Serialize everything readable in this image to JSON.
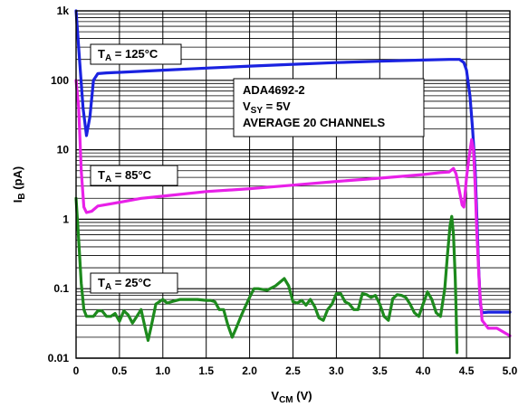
{
  "chart_data": {
    "type": "line",
    "title": "",
    "xlabel": {
      "main": "V",
      "sub": "CM",
      "unit": " (V)"
    },
    "ylabel": {
      "main": "I",
      "sub": "B",
      "unit": " (pA)"
    },
    "xlim": [
      0,
      5
    ],
    "ylim": [
      0.01,
      1000
    ],
    "yscale": "log",
    "grid": true,
    "legend": "none",
    "x_ticks": [
      "0",
      "0.5",
      "1.0",
      "1.5",
      "2.0",
      "2.5",
      "3.0",
      "3.5",
      "4.0",
      "4.5",
      "5.0"
    ],
    "y_ticks": [
      {
        "value": 0.01,
        "label": "0.01"
      },
      {
        "value": 0.1,
        "label": "0.1"
      },
      {
        "value": 1,
        "label": "1"
      },
      {
        "value": 10,
        "label": "10"
      },
      {
        "value": 100,
        "label": "100"
      },
      {
        "value": 1000,
        "label": "1k"
      }
    ],
    "annotations": {
      "title_box": {
        "line1": "ADA4692-2",
        "line2_main": "V",
        "line2_sub": "SY",
        "line2_rest": " = 5V",
        "line3": "AVERAGE 20 CHANNELS"
      },
      "t125": {
        "main": "T",
        "sub": "A",
        "rest": " = 125°C"
      },
      "t85": {
        "main": "T",
        "sub": "A",
        "rest": " = 85°C"
      },
      "t25": {
        "main": "T",
        "sub": "A",
        "rest": " = 25°C"
      }
    },
    "series": [
      {
        "color": "#1a22e0",
        "points": [
          [
            0.0,
            1000
          ],
          [
            0.04,
            200
          ],
          [
            0.08,
            40
          ],
          [
            0.12,
            16
          ],
          [
            0.16,
            30
          ],
          [
            0.2,
            100
          ],
          [
            0.25,
            125
          ],
          [
            0.35,
            128
          ],
          [
            0.5,
            130
          ],
          [
            1.0,
            140
          ],
          [
            1.5,
            150
          ],
          [
            2.0,
            160
          ],
          [
            2.5,
            170
          ],
          [
            3.0,
            180
          ],
          [
            3.5,
            188
          ],
          [
            4.0,
            196
          ],
          [
            4.3,
            200
          ],
          [
            4.42,
            200
          ],
          [
            4.47,
            180
          ],
          [
            4.5,
            140
          ],
          [
            4.54,
            60
          ],
          [
            4.57,
            20
          ],
          [
            4.6,
            5
          ],
          [
            4.62,
            1
          ],
          [
            4.64,
            0.2
          ],
          [
            4.66,
            0.06
          ],
          [
            4.68,
            0.045
          ],
          [
            4.75,
            0.046
          ],
          [
            5.0,
            0.046
          ]
        ]
      },
      {
        "color": "#e820e8",
        "points": [
          [
            0.0,
            100
          ],
          [
            0.03,
            40
          ],
          [
            0.06,
            5
          ],
          [
            0.09,
            1.5
          ],
          [
            0.12,
            1.25
          ],
          [
            0.18,
            1.3
          ],
          [
            0.25,
            1.55
          ],
          [
            0.5,
            1.75
          ],
          [
            0.75,
            2.0
          ],
          [
            1.0,
            2.15
          ],
          [
            1.5,
            2.5
          ],
          [
            2.0,
            2.75
          ],
          [
            2.5,
            3.1
          ],
          [
            3.0,
            3.5
          ],
          [
            3.5,
            3.9
          ],
          [
            4.0,
            4.4
          ],
          [
            4.2,
            4.7
          ],
          [
            4.3,
            4.8
          ],
          [
            4.35,
            5.4
          ],
          [
            4.38,
            4.5
          ],
          [
            4.42,
            2.5
          ],
          [
            4.45,
            1.6
          ],
          [
            4.47,
            1.5
          ],
          [
            4.5,
            4
          ],
          [
            4.53,
            8
          ],
          [
            4.56,
            14
          ],
          [
            4.58,
            10
          ],
          [
            4.6,
            3
          ],
          [
            4.62,
            0.6
          ],
          [
            4.65,
            0.1
          ],
          [
            4.68,
            0.035
          ],
          [
            4.75,
            0.027
          ],
          [
            4.85,
            0.027
          ],
          [
            5.0,
            0.021
          ]
        ]
      },
      {
        "color": "#1d8a1d",
        "points": [
          [
            0.0,
            2.0
          ],
          [
            0.03,
            0.5
          ],
          [
            0.06,
            0.12
          ],
          [
            0.09,
            0.05
          ],
          [
            0.12,
            0.04
          ],
          [
            0.2,
            0.04
          ],
          [
            0.25,
            0.048
          ],
          [
            0.3,
            0.048
          ],
          [
            0.35,
            0.04
          ],
          [
            0.4,
            0.04
          ],
          [
            0.45,
            0.044
          ],
          [
            0.5,
            0.034
          ],
          [
            0.55,
            0.048
          ],
          [
            0.6,
            0.042
          ],
          [
            0.65,
            0.032
          ],
          [
            0.7,
            0.04
          ],
          [
            0.75,
            0.05
          ],
          [
            0.8,
            0.026
          ],
          [
            0.83,
            0.018
          ],
          [
            0.87,
            0.03
          ],
          [
            0.92,
            0.06
          ],
          [
            1.0,
            0.07
          ],
          [
            1.05,
            0.062
          ],
          [
            1.1,
            0.065
          ],
          [
            1.2,
            0.07
          ],
          [
            1.3,
            0.07
          ],
          [
            1.4,
            0.07
          ],
          [
            1.5,
            0.068
          ],
          [
            1.55,
            0.068
          ],
          [
            1.6,
            0.065
          ],
          [
            1.65,
            0.05
          ],
          [
            1.7,
            0.05
          ],
          [
            1.75,
            0.03
          ],
          [
            1.8,
            0.02
          ],
          [
            1.85,
            0.028
          ],
          [
            1.9,
            0.04
          ],
          [
            1.95,
            0.055
          ],
          [
            2.0,
            0.075
          ],
          [
            2.05,
            0.1
          ],
          [
            2.1,
            0.1
          ],
          [
            2.2,
            0.095
          ],
          [
            2.3,
            0.11
          ],
          [
            2.4,
            0.14
          ],
          [
            2.45,
            0.11
          ],
          [
            2.5,
            0.065
          ],
          [
            2.55,
            0.062
          ],
          [
            2.6,
            0.068
          ],
          [
            2.65,
            0.058
          ],
          [
            2.7,
            0.07
          ],
          [
            2.75,
            0.055
          ],
          [
            2.8,
            0.038
          ],
          [
            2.85,
            0.035
          ],
          [
            2.9,
            0.05
          ],
          [
            2.95,
            0.06
          ],
          [
            3.0,
            0.085
          ],
          [
            3.05,
            0.085
          ],
          [
            3.1,
            0.065
          ],
          [
            3.15,
            0.06
          ],
          [
            3.2,
            0.05
          ],
          [
            3.25,
            0.05
          ],
          [
            3.3,
            0.085
          ],
          [
            3.35,
            0.082
          ],
          [
            3.4,
            0.075
          ],
          [
            3.45,
            0.08
          ],
          [
            3.5,
            0.06
          ],
          [
            3.55,
            0.04
          ],
          [
            3.6,
            0.035
          ],
          [
            3.65,
            0.072
          ],
          [
            3.7,
            0.082
          ],
          [
            3.75,
            0.08
          ],
          [
            3.8,
            0.075
          ],
          [
            3.85,
            0.06
          ],
          [
            3.9,
            0.045
          ],
          [
            3.95,
            0.04
          ],
          [
            4.0,
            0.06
          ],
          [
            4.05,
            0.09
          ],
          [
            4.1,
            0.07
          ],
          [
            4.15,
            0.045
          ],
          [
            4.2,
            0.04
          ],
          [
            4.25,
            0.1
          ],
          [
            4.28,
            0.3
          ],
          [
            4.31,
            0.8
          ],
          [
            4.33,
            1.1
          ],
          [
            4.35,
            0.6
          ],
          [
            4.37,
            0.15
          ],
          [
            4.38,
            0.05
          ],
          [
            4.39,
            0.012
          ]
        ]
      }
    ]
  }
}
